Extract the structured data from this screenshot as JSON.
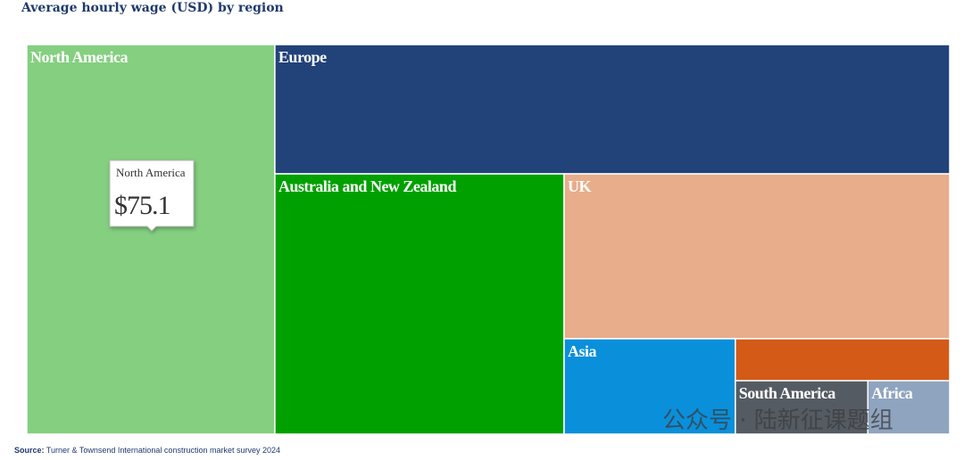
{
  "chart_data": {
    "type": "treemap",
    "title": "Average hourly wage (USD) by region",
    "categories": [
      "North America",
      "Europe",
      "Australia and New Zealand",
      "UK",
      "Asia",
      null,
      "South America",
      "Africa"
    ],
    "values": [
      75.1,
      67.8,
      58.5,
      49.4,
      12.7,
      7.0,
      5.5,
      3.4
    ],
    "value_labels": [
      "$75.1",
      null,
      null,
      null,
      null,
      null,
      null,
      null
    ],
    "colors": [
      "#84cf80",
      "#22427a",
      "#00a000",
      "#e8ad8a",
      "#0a8fdb",
      "#d45a17",
      "#555b63",
      "#8fa4bf"
    ],
    "tooltip_index": 0,
    "source_label": "Source:",
    "source": "Turner & Townsend International construction market survey 2024"
  },
  "watermark": "公众号 · 陆新征课题组"
}
